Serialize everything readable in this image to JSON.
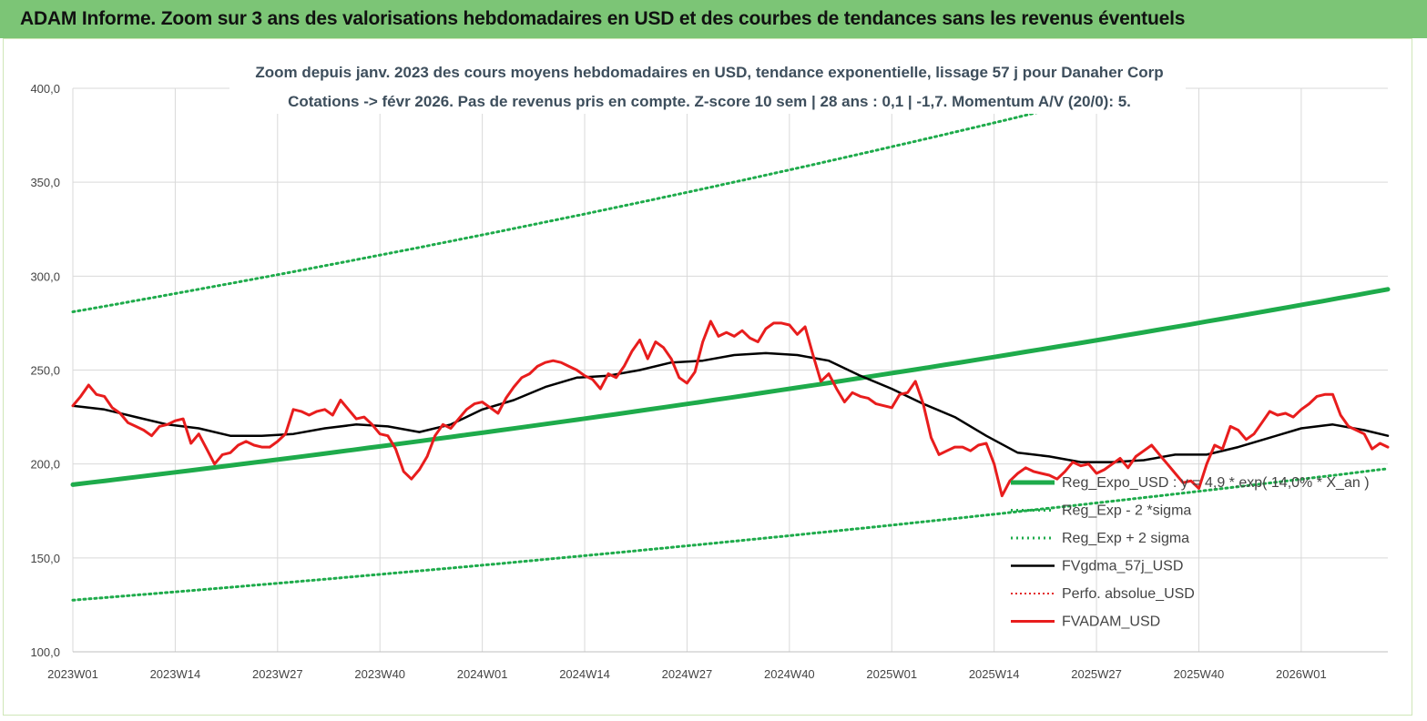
{
  "banner": {
    "title": "ADAM Informe. Zoom sur 3 ans des valorisations hebdomadaires en USD et des courbes de tendances sans les revenus éventuels"
  },
  "chart_data": {
    "type": "line",
    "title": "Zoom depuis janv. 2023 des cours moyens hebdomadaires en USD, tendance exponentielle, lissage 57 j pour Danaher Corp",
    "subtitle": "Cotations -> févr 2026. Pas de revenus pris en compte. Z-score 10 sem  | 28 ans : 0,1 | -1,7. Momentum A/V (20/0): 5.",
    "ylim": [
      100,
      400
    ],
    "y_ticks": [
      "100,0",
      "150,0",
      "200,0",
      "250,0",
      "300,0",
      "350,0",
      "400,0"
    ],
    "y_tick_values": [
      100,
      150,
      200,
      250,
      300,
      350,
      400
    ],
    "x_range": [
      0,
      167
    ],
    "x_ticks": [
      "2023W01",
      "2023W14",
      "2023W27",
      "2023W40",
      "2024W01",
      "2024W14",
      "2024W27",
      "2024W40",
      "2025W01",
      "2025W14",
      "2025W27",
      "2025W40",
      "2026W01"
    ],
    "x_tick_index": [
      0,
      13,
      26,
      39,
      52,
      65,
      78,
      91,
      104,
      117,
      130,
      143,
      156
    ],
    "grid": true,
    "legend_placement": "bottom-right",
    "colors": {
      "expo": "#1eab4b",
      "sigma": "#1eab4b",
      "ma": "#000000",
      "perfo": "#e32626",
      "adam": "#e81d1d"
    },
    "series": [
      {
        "name": "Reg_Expo_USD : y = 4,9 *.exp( 14,0% * X_an )",
        "kind": "expo",
        "x": [
          0,
          167
        ],
        "start": 189,
        "end": 293
      },
      {
        "name": "Reg_Exp - 2 *sigma",
        "kind": "sigma_low",
        "x": [
          0,
          167
        ],
        "start": 127.5,
        "end": 197.5
      },
      {
        "name": "Reg_Exp + 2 sigma",
        "kind": "sigma_high",
        "x": [
          0,
          167
        ],
        "start": 281,
        "end": 435
      },
      {
        "name": "FVgdma_57j_USD",
        "kind": "ma",
        "x": [
          0,
          4,
          8,
          12,
          16,
          20,
          24,
          28,
          32,
          36,
          40,
          44,
          48,
          52,
          56,
          60,
          64,
          68,
          72,
          76,
          80,
          84,
          88,
          92,
          96,
          100,
          104,
          108,
          112,
          116,
          120,
          124,
          128,
          132,
          136,
          140,
          144,
          148,
          152,
          156,
          160,
          164,
          167
        ],
        "y": [
          231,
          229,
          225,
          221,
          219,
          215,
          215,
          216,
          219,
          221,
          220,
          217,
          221,
          229,
          234,
          241,
          246,
          247,
          250,
          254,
          255,
          258,
          259,
          258,
          255,
          247,
          240,
          232,
          225,
          215,
          206,
          204,
          201,
          201,
          202,
          205,
          205,
          209,
          214,
          219,
          221,
          218,
          215
        ]
      },
      {
        "name": "Perfo. absolue_USD",
        "kind": "perfo",
        "x": [],
        "y": []
      },
      {
        "name": "FVADAM_USD",
        "kind": "adam",
        "x": [
          0,
          1,
          2,
          3,
          4,
          5,
          6,
          7,
          8,
          9,
          10,
          11,
          12,
          13,
          14,
          15,
          16,
          17,
          18,
          19,
          20,
          21,
          22,
          23,
          24,
          25,
          26,
          27,
          28,
          29,
          30,
          31,
          32,
          33,
          34,
          35,
          36,
          37,
          38,
          39,
          40,
          41,
          42,
          43,
          44,
          45,
          46,
          47,
          48,
          49,
          50,
          51,
          52,
          53,
          54,
          55,
          56,
          57,
          58,
          59,
          60,
          61,
          62,
          63,
          64,
          65,
          66,
          67,
          68,
          69,
          70,
          71,
          72,
          73,
          74,
          75,
          76,
          77,
          78,
          79,
          80,
          81,
          82,
          83,
          84,
          85,
          86,
          87,
          88,
          89,
          90,
          91,
          92,
          93,
          94,
          95,
          96,
          97,
          98,
          99,
          100,
          101,
          102,
          103,
          104,
          105,
          106,
          107,
          108,
          109,
          110,
          111,
          112,
          113,
          114,
          115,
          116,
          117,
          118,
          119,
          120,
          121,
          122,
          123,
          124,
          125,
          126,
          127,
          128,
          129,
          130,
          131,
          132,
          133,
          134,
          135,
          136,
          137,
          138,
          139,
          140,
          141,
          142,
          143,
          144,
          145,
          146,
          147,
          148,
          149,
          150,
          151,
          152,
          153,
          154,
          155,
          156,
          157,
          158,
          159,
          160,
          161,
          162,
          163,
          164,
          165,
          166,
          167
        ],
        "y": [
          231,
          236,
          242,
          237,
          236,
          230,
          227,
          222,
          220,
          218,
          215,
          220,
          221,
          223,
          224,
          211,
          216,
          208,
          200,
          205,
          206,
          210,
          212,
          210,
          209,
          209,
          212,
          216,
          229,
          228,
          226,
          228,
          229,
          226,
          234,
          229,
          224,
          225,
          221,
          216,
          215,
          208,
          196,
          192,
          197,
          204,
          215,
          221,
          219,
          224,
          229,
          232,
          233,
          230,
          227,
          235,
          241,
          246,
          248,
          252,
          254,
          255,
          254,
          252,
          250,
          247,
          245,
          240,
          248,
          246,
          252,
          260,
          266,
          256,
          265,
          262,
          256,
          246,
          243,
          249,
          265,
          276,
          268,
          270,
          268,
          271,
          267,
          265,
          272,
          275,
          275,
          274,
          269,
          273,
          258,
          244,
          248,
          240,
          233,
          238,
          236,
          235,
          232,
          231,
          230,
          237,
          238,
          244,
          232,
          214,
          205,
          207,
          209,
          209,
          207,
          210,
          211,
          200,
          183,
          191,
          195,
          198,
          196,
          195,
          194,
          192,
          196,
          201,
          199,
          200,
          195,
          197,
          200,
          203,
          198,
          204,
          207,
          210,
          205,
          200,
          195,
          190,
          191,
          187,
          200,
          210,
          208,
          220,
          218,
          213,
          216,
          222,
          228,
          226,
          227,
          225,
          229,
          232,
          236,
          237,
          237,
          226,
          220,
          218,
          216,
          208,
          211,
          209
        ]
      }
    ]
  }
}
